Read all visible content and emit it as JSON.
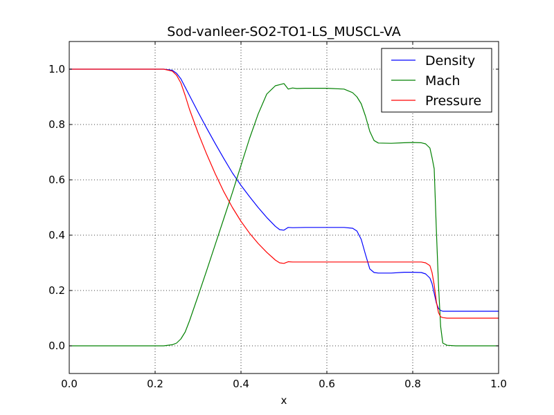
{
  "chart_data": {
    "type": "line",
    "title": "Sod-vanleer-SO2-TO1-LS_MUSCL-VA",
    "xlabel": "x",
    "ylabel": "",
    "xlim": [
      0.0,
      1.0
    ],
    "ylim": [
      -0.1,
      1.1
    ],
    "xticks": [
      0.0,
      0.2,
      0.4,
      0.6,
      0.8,
      1.0
    ],
    "xtick_labels": [
      "0.0",
      "0.2",
      "0.4",
      "0.6",
      "0.8",
      "1.0"
    ],
    "yticks": [
      0.0,
      0.2,
      0.4,
      0.6,
      0.8,
      1.0
    ],
    "ytick_labels": [
      "0.0",
      "0.2",
      "0.4",
      "0.6",
      "0.8",
      "1.0"
    ],
    "grid": true,
    "legend_position": "top-right",
    "series": [
      {
        "name": "Density",
        "color": "#0000ff",
        "x": [
          0.0,
          0.1,
          0.2,
          0.22,
          0.24,
          0.25,
          0.26,
          0.28,
          0.3,
          0.32,
          0.34,
          0.36,
          0.38,
          0.4,
          0.42,
          0.44,
          0.46,
          0.48,
          0.49,
          0.5,
          0.51,
          0.52,
          0.55,
          0.6,
          0.64,
          0.66,
          0.67,
          0.68,
          0.69,
          0.7,
          0.71,
          0.72,
          0.75,
          0.78,
          0.8,
          0.82,
          0.83,
          0.84,
          0.845,
          0.85,
          0.855,
          0.86,
          0.865,
          0.87,
          0.88,
          0.9,
          0.95,
          1.0
        ],
        "y": [
          1.0,
          1.0,
          1.0,
          1.0,
          0.996,
          0.985,
          0.965,
          0.905,
          0.845,
          0.787,
          0.731,
          0.677,
          0.625,
          0.58,
          0.539,
          0.5,
          0.464,
          0.432,
          0.42,
          0.418,
          0.428,
          0.427,
          0.428,
          0.428,
          0.428,
          0.425,
          0.415,
          0.385,
          0.33,
          0.278,
          0.265,
          0.263,
          0.263,
          0.266,
          0.266,
          0.265,
          0.26,
          0.245,
          0.225,
          0.19,
          0.155,
          0.135,
          0.128,
          0.125,
          0.125,
          0.125,
          0.125,
          0.125
        ]
      },
      {
        "name": "Mach",
        "color": "#008000",
        "x": [
          0.0,
          0.1,
          0.2,
          0.22,
          0.24,
          0.25,
          0.26,
          0.27,
          0.28,
          0.3,
          0.32,
          0.34,
          0.36,
          0.38,
          0.4,
          0.42,
          0.44,
          0.46,
          0.48,
          0.49,
          0.5,
          0.51,
          0.52,
          0.53,
          0.55,
          0.6,
          0.64,
          0.66,
          0.67,
          0.68,
          0.69,
          0.7,
          0.71,
          0.72,
          0.75,
          0.78,
          0.8,
          0.82,
          0.83,
          0.84,
          0.845,
          0.85,
          0.855,
          0.86,
          0.865,
          0.87,
          0.88,
          0.9,
          0.95,
          1.0
        ],
        "y": [
          0.0,
          0.0,
          0.0,
          0.0,
          0.004,
          0.01,
          0.025,
          0.05,
          0.09,
          0.18,
          0.272,
          0.366,
          0.46,
          0.554,
          0.652,
          0.75,
          0.838,
          0.91,
          0.94,
          0.944,
          0.948,
          0.928,
          0.932,
          0.93,
          0.931,
          0.931,
          0.928,
          0.915,
          0.9,
          0.875,
          0.83,
          0.775,
          0.742,
          0.733,
          0.732,
          0.734,
          0.735,
          0.734,
          0.73,
          0.715,
          0.68,
          0.64,
          0.42,
          0.22,
          0.07,
          0.01,
          0.002,
          0.0,
          0.0,
          0.0
        ]
      },
      {
        "name": "Pressure",
        "color": "#ff0000",
        "x": [
          0.0,
          0.1,
          0.2,
          0.22,
          0.24,
          0.25,
          0.26,
          0.27,
          0.28,
          0.3,
          0.32,
          0.34,
          0.36,
          0.38,
          0.4,
          0.42,
          0.44,
          0.46,
          0.48,
          0.49,
          0.5,
          0.51,
          0.52,
          0.55,
          0.6,
          0.65,
          0.7,
          0.75,
          0.8,
          0.82,
          0.83,
          0.84,
          0.845,
          0.85,
          0.855,
          0.86,
          0.865,
          0.87,
          0.88,
          0.9,
          0.95,
          1.0
        ],
        "y": [
          1.0,
          1.0,
          1.0,
          1.0,
          0.993,
          0.978,
          0.95,
          0.905,
          0.855,
          0.77,
          0.693,
          0.622,
          0.557,
          0.5,
          0.45,
          0.407,
          0.37,
          0.338,
          0.31,
          0.3,
          0.298,
          0.304,
          0.303,
          0.303,
          0.303,
          0.303,
          0.303,
          0.303,
          0.303,
          0.303,
          0.3,
          0.29,
          0.265,
          0.22,
          0.16,
          0.12,
          0.105,
          0.102,
          0.1,
          0.1,
          0.1,
          0.1
        ]
      }
    ]
  }
}
